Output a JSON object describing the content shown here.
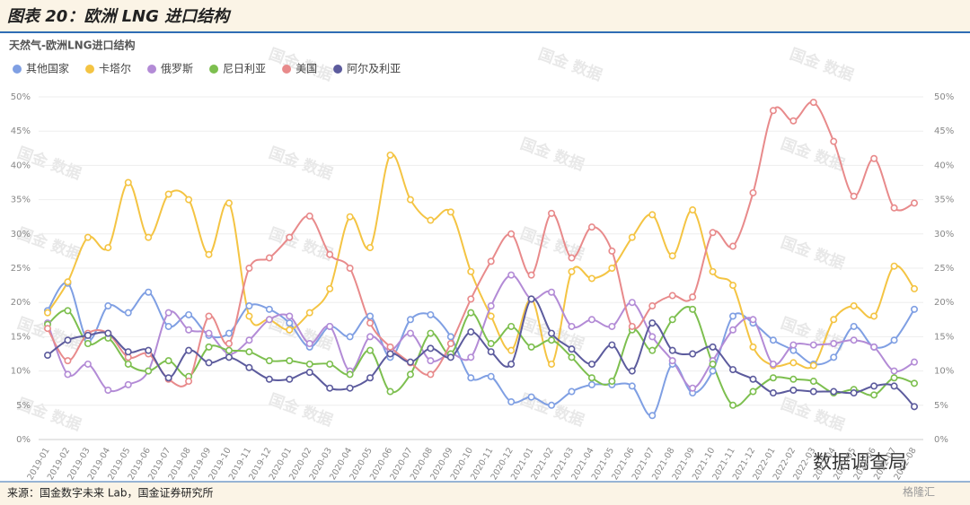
{
  "figure_title": "图表 20：欧洲 LNG 进口结构",
  "source": "来源：国金数字未来 Lab，国金证券研究所",
  "watermark": "国金 数据",
  "brand": "数据调查局",
  "brand2": "格隆汇",
  "chart_data": {
    "type": "line",
    "title": "天然气-欧洲LNG进口结构",
    "categories": [
      "2019-01",
      "2019-02",
      "2019-03",
      "2019-04",
      "2019-05",
      "2019-06",
      "2019-07",
      "2019-08",
      "2019-09",
      "2019-10",
      "2019-11",
      "2019-12",
      "2020-01",
      "2020-02",
      "2020-03",
      "2020-04",
      "2020-05",
      "2020-06",
      "2020-07",
      "2020-08",
      "2020-09",
      "2020-10",
      "2020-11",
      "2020-12",
      "2021-01",
      "2021-02",
      "2021-03",
      "2021-04",
      "2021-05",
      "2021-06",
      "2021-07",
      "2021-08",
      "2021-09",
      "2021-10",
      "2021-11",
      "2021-12",
      "2022-01",
      "2022-02",
      "2022-03",
      "2022-04",
      "2022-05",
      "2022-06",
      "2022-07",
      "2022-08"
    ],
    "ylim": [
      0,
      50
    ],
    "yticks": [
      {
        "value": 0,
        "label": "0%"
      },
      {
        "value": 5,
        "label": "5%"
      },
      {
        "value": 10,
        "label": "10%"
      },
      {
        "value": 15,
        "label": "15%"
      },
      {
        "value": 20,
        "label": "20%"
      },
      {
        "value": 25,
        "label": "25%"
      },
      {
        "value": 30,
        "label": "30%"
      },
      {
        "value": 35,
        "label": "35%"
      },
      {
        "value": 40,
        "label": "40%"
      },
      {
        "value": 45,
        "label": "45%"
      },
      {
        "value": 50,
        "label": "50%"
      }
    ],
    "grid": true,
    "legend": "top-left",
    "series": [
      {
        "name": "其他国家",
        "color": "#7f9fe3",
        "values": [
          18.8,
          22.8,
          14.5,
          19.5,
          18.5,
          21.5,
          16.5,
          18.2,
          15.2,
          15.5,
          19.5,
          19,
          17,
          13.5,
          16.5,
          15,
          18,
          12,
          17.5,
          18.2,
          15,
          9,
          9.2,
          5.5,
          6.2,
          5,
          7,
          8,
          8,
          7.8,
          3.5,
          11,
          6.8,
          10,
          18,
          17,
          14.5,
          13,
          11,
          12,
          16.5,
          13.5,
          14.5,
          19
        ]
      },
      {
        "name": "卡塔尔",
        "color": "#f4c443",
        "values": [
          18.5,
          23,
          29.5,
          28,
          37.5,
          29.5,
          35.8,
          35,
          27,
          34.5,
          18,
          17.5,
          16,
          18.5,
          22,
          32.5,
          28,
          41.5,
          35,
          32,
          33.2,
          24.5,
          18,
          13,
          20.5,
          11,
          24.5,
          23.5,
          25,
          29.5,
          32.8,
          26.8,
          33.5,
          24.5,
          22.5,
          13.5,
          10.8,
          11.2,
          10.8,
          17.5,
          19.5,
          18,
          25.3,
          22
        ]
      },
      {
        "name": "俄罗斯",
        "color": "#b38bd6",
        "values": [
          17,
          9.5,
          11,
          7.2,
          8,
          10,
          18.5,
          16,
          15.5,
          12.5,
          14.5,
          17.5,
          18,
          14,
          16.5,
          10,
          15,
          13,
          15.5,
          11.5,
          12.5,
          12,
          19.5,
          24,
          20.5,
          21.5,
          16.5,
          17.5,
          16.5,
          20,
          15,
          11.5,
          7.5,
          11.5,
          16,
          17.5,
          11,
          13.8,
          13.8,
          14,
          14.5,
          13.5,
          10,
          11.3
        ]
      },
      {
        "name": "尼日利亚",
        "color": "#7dbf4f",
        "values": [
          16.8,
          18.8,
          14,
          14.8,
          11,
          10,
          11.5,
          9.2,
          13.5,
          13,
          12.8,
          11.5,
          11.5,
          11,
          11,
          9.5,
          13,
          7,
          9.5,
          15.5,
          12.5,
          18.5,
          14,
          16.5,
          13.5,
          14.5,
          12,
          9,
          8.5,
          16,
          13,
          17.5,
          19,
          11,
          5,
          7,
          9,
          8.8,
          8.5,
          6.8,
          7.3,
          6.5,
          9,
          8.2
        ]
      },
      {
        "name": "美国",
        "color": "#e88a8b",
        "values": [
          16.2,
          11.5,
          15.5,
          15.5,
          12,
          12.5,
          8.8,
          8.5,
          18,
          14,
          25,
          26.5,
          29.5,
          32.6,
          27,
          25,
          17,
          13.5,
          11.2,
          9.5,
          14,
          20.5,
          26,
          30,
          24,
          33,
          26.5,
          31,
          27.5,
          16.5,
          19.5,
          21,
          20.8,
          30.2,
          28.2,
          36,
          48,
          46.5,
          49.2,
          43.5,
          35.5,
          41,
          33.8,
          34.5
        ]
      },
      {
        "name": "阿尔及利亚",
        "color": "#5c5b9d",
        "values": [
          12.3,
          14.5,
          15.2,
          15.5,
          12.8,
          13,
          9,
          13,
          11.2,
          12,
          10.5,
          8.8,
          8.8,
          9.8,
          7.5,
          7.5,
          9,
          12.5,
          11.3,
          13.3,
          12,
          15.7,
          12.8,
          11,
          20.5,
          15.5,
          13.2,
          11,
          13.8,
          10,
          17,
          13,
          12.5,
          13.5,
          10.2,
          8.8,
          6.8,
          7.2,
          7,
          7,
          6.8,
          7.8,
          7.8,
          4.8
        ]
      }
    ]
  }
}
